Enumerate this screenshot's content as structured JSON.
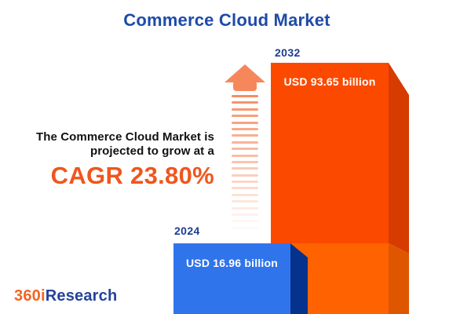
{
  "title": "Commerce Cloud Market",
  "annotation": {
    "line1": "The Commerce Cloud Market is",
    "line2": "projected to grow at a",
    "cagr": "CAGR 23.80%"
  },
  "bars": [
    {
      "year": "2024",
      "label": "USD 16.96 billion"
    },
    {
      "year": "2032",
      "label": "USD 93.65 billion"
    }
  ],
  "logo": {
    "part1": "360i",
    "part2": "Research"
  },
  "colors": {
    "title_blue": "#1E4BA8",
    "year_label_blue": "#1D3D91",
    "cagr_orange": "#F0561D",
    "arrow_orange": "#F6875B",
    "logo_orange": "#F26522",
    "logo_blue": "#24439B",
    "bar2032_front_upper": "#FB4A00",
    "bar2032_front_lower": "#FF6200",
    "bar2032_side_upper": "#D63B00",
    "bar2032_side_lower": "#DE5600",
    "bar2024_front": "#3074EC",
    "bar2024_side": "#04328C"
  },
  "chart_data": {
    "type": "bar",
    "title": "Commerce Cloud Market",
    "unit": "USD billion",
    "categories": [
      "2024",
      "2032"
    ],
    "values": [
      16.96,
      93.65
    ],
    "value_labels": [
      "USD 16.96 billion",
      "USD 93.65 billion"
    ],
    "cagr_percent": 23.8,
    "xlabel": "",
    "ylabel": "",
    "legend_position": "none",
    "grid": false,
    "bar_colors": [
      "#3074EC",
      "#FB4A00"
    ],
    "style_notes": "3D pictorial bars; 2024 level marked as lighter segment at base of 2032 bar; dashed fading growth arrow"
  }
}
